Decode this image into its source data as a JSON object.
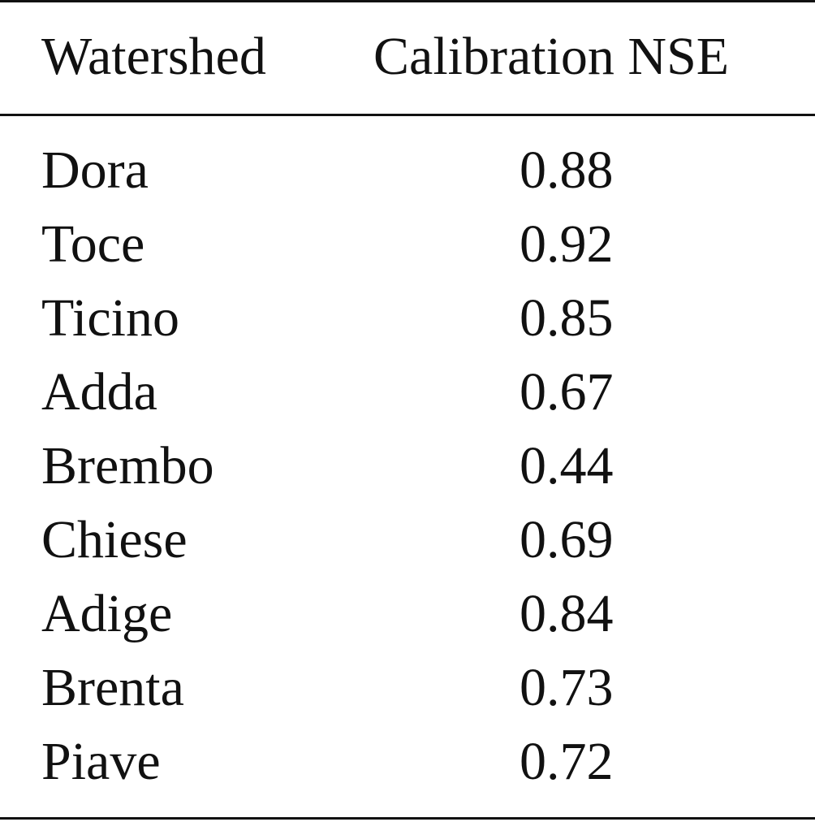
{
  "table": {
    "headers": [
      "Watershed",
      "Calibration NSE"
    ],
    "rows": [
      {
        "watershed": "Dora",
        "nse": "0.88"
      },
      {
        "watershed": "Toce",
        "nse": "0.92"
      },
      {
        "watershed": "Ticino",
        "nse": "0.85"
      },
      {
        "watershed": "Adda",
        "nse": "0.67"
      },
      {
        "watershed": "Brembo",
        "nse": "0.44"
      },
      {
        "watershed": "Chiese",
        "nse": "0.69"
      },
      {
        "watershed": "Adige",
        "nse": "0.84"
      },
      {
        "watershed": "Brenta",
        "nse": "0.73"
      },
      {
        "watershed": "Piave",
        "nse": "0.72"
      }
    ]
  }
}
